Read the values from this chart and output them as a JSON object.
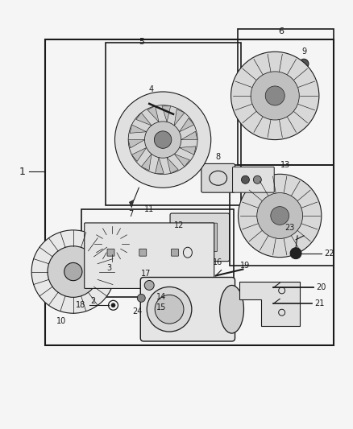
{
  "bg_color": "#f5f5f5",
  "line_color": "#1a1a1a",
  "fig_width": 4.38,
  "fig_height": 5.33,
  "dpi": 100
}
